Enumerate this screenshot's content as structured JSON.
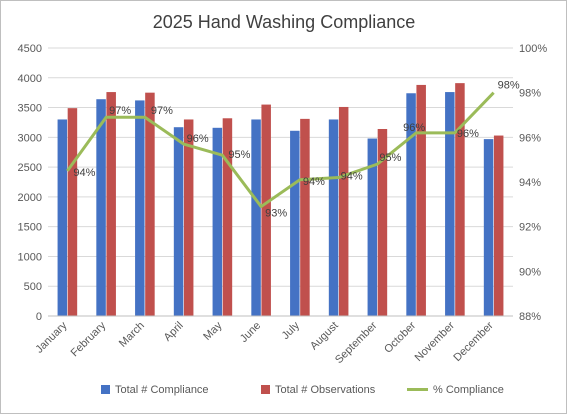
{
  "chart_data": {
    "type": "bar",
    "title": "2025 Hand Washing Compliance",
    "categories": [
      "January",
      "February",
      "March",
      "April",
      "May",
      "June",
      "July",
      "August",
      "September",
      "October",
      "November",
      "December"
    ],
    "series": [
      {
        "name": "Total # Compliance",
        "type": "bar",
        "axis": "left",
        "color": "#4472C4",
        "values": [
          3300,
          3640,
          3620,
          3170,
          3160,
          3300,
          3110,
          3300,
          2980,
          3740,
          3760,
          2970
        ]
      },
      {
        "name": "Total # Observations",
        "type": "bar",
        "axis": "left",
        "color": "#C0504D",
        "values": [
          3490,
          3760,
          3750,
          3300,
          3320,
          3550,
          3310,
          3510,
          3140,
          3880,
          3910,
          3030
        ]
      },
      {
        "name": "% Compliance",
        "type": "line",
        "axis": "right",
        "color": "#9BBB59",
        "values": [
          94.5,
          96.9,
          96.9,
          95.7,
          95.2,
          92.9,
          94.1,
          94.2,
          94.8,
          96.2,
          96.2,
          98.0
        ],
        "labels": [
          "94%",
          "97%",
          "97%",
          "96%",
          "95%",
          "93%",
          "94%",
          "94%",
          "95%",
          "96%",
          "96%",
          "98%"
        ]
      }
    ],
    "ylim": [
      0,
      4500
    ],
    "yticks": [
      "0",
      "500",
      "1000",
      "1500",
      "2000",
      "2500",
      "3000",
      "3500",
      "4000",
      "4500"
    ],
    "y2lim": [
      88,
      100
    ],
    "y2ticks": [
      "88%",
      "90%",
      "92%",
      "94%",
      "96%",
      "98%",
      "100%"
    ],
    "grid": true,
    "legend_position": "bottom"
  }
}
